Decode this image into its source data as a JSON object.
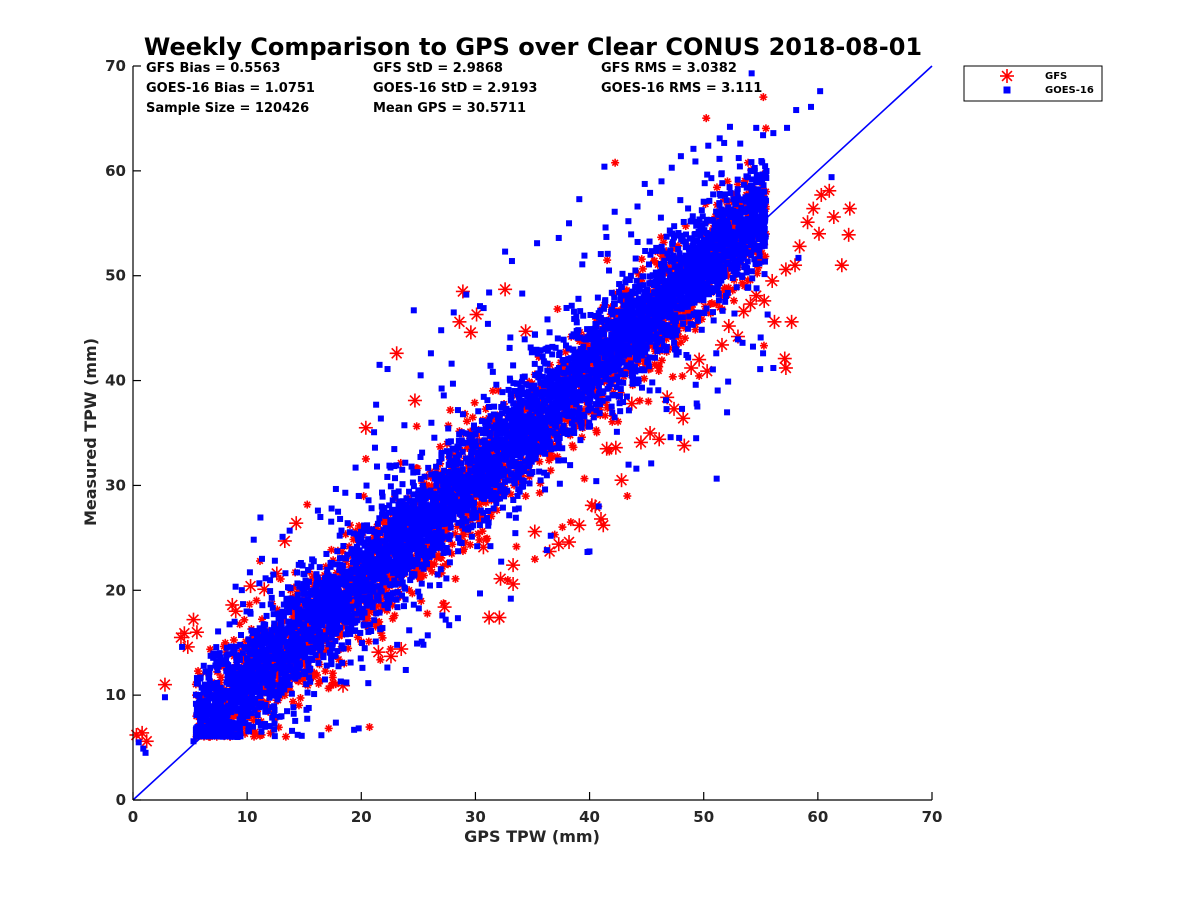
{
  "chart_data": {
    "type": "scatter",
    "title": "Weekly Comparison to GPS over Clear CONUS 2018-08-01",
    "xlabel": "GPS TPW (mm)",
    "ylabel": "Measured TPW (mm)",
    "xlim": [
      0,
      70
    ],
    "ylim": [
      0,
      70
    ],
    "xticks": [
      "0",
      "10",
      "20",
      "30",
      "40",
      "50",
      "60",
      "70"
    ],
    "yticks": [
      "0",
      "10",
      "20",
      "30",
      "40",
      "50",
      "60",
      "70"
    ],
    "grid": false,
    "legend_position": "outside top-right",
    "reference_line": {
      "x": [
        0,
        70
      ],
      "y": [
        0,
        70
      ],
      "color": "#0000ff"
    },
    "stats": {
      "gfs_bias": "GFS Bias = 0.5563",
      "gfs_std": "GFS StD = 2.9868",
      "gfs_rms": "GFS RMS = 3.0382",
      "goes_bias": "GOES-16 Bias = 1.0751",
      "goes_std": "GOES-16 StD = 2.9193",
      "goes_rms": "GOES-16 RMS = 3.111",
      "sample_size": "Sample Size = 120426",
      "mean_gps": "Mean GPS = 30.5711"
    },
    "series": [
      {
        "name": "GFS",
        "marker": "asterisk",
        "color": "#ff0000",
        "bias": 0.5563,
        "std": 2.9868,
        "rms": 3.0382,
        "points": [
          [
            0.3,
            6.2
          ],
          [
            0.8,
            6.4
          ],
          [
            1.2,
            5.6
          ],
          [
            2.8,
            11.0
          ],
          [
            4.2,
            15.5
          ],
          [
            4.5,
            15.9
          ],
          [
            4.8,
            14.6
          ],
          [
            5.3,
            17.2
          ],
          [
            5.6,
            16.0
          ],
          [
            8.7,
            18.6
          ],
          [
            9.0,
            18.0
          ],
          [
            10.3,
            20.4
          ],
          [
            11.5,
            20.1
          ],
          [
            12.6,
            21.6
          ],
          [
            13.3,
            24.7
          ],
          [
            14.3,
            26.4
          ],
          [
            18.4,
            10.9
          ],
          [
            19.2,
            21.2
          ],
          [
            20.4,
            35.5
          ],
          [
            21.5,
            14.1
          ],
          [
            22.6,
            13.7
          ],
          [
            23.5,
            14.4
          ],
          [
            23.1,
            42.6
          ],
          [
            24.7,
            38.1
          ],
          [
            27.3,
            18.4
          ],
          [
            28.6,
            45.6
          ],
          [
            28.9,
            48.5
          ],
          [
            29.6,
            44.6
          ],
          [
            30.1,
            46.3
          ],
          [
            30.7,
            24.1
          ],
          [
            31.2,
            17.4
          ],
          [
            32.1,
            17.4
          ],
          [
            32.2,
            21.1
          ],
          [
            32.6,
            48.7
          ],
          [
            33.3,
            22.4
          ],
          [
            33.3,
            20.6
          ],
          [
            34.4,
            44.7
          ],
          [
            35.2,
            25.6
          ],
          [
            36.5,
            23.7
          ],
          [
            37.3,
            24.4
          ],
          [
            38.2,
            24.6
          ],
          [
            39.1,
            26.2
          ],
          [
            40.2,
            28.1
          ],
          [
            41.0,
            26.8
          ],
          [
            41.2,
            26.2
          ],
          [
            40.5,
            28.0
          ],
          [
            41.5,
            33.5
          ],
          [
            42.8,
            30.5
          ],
          [
            42.3,
            33.6
          ],
          [
            43.7,
            37.8
          ],
          [
            44.5,
            34.1
          ],
          [
            45.3,
            35.0
          ],
          [
            46.1,
            34.4
          ],
          [
            46.8,
            38.4
          ],
          [
            47.4,
            37.3
          ],
          [
            48.2,
            36.4
          ],
          [
            48.3,
            33.8
          ],
          [
            48.9,
            41.2
          ],
          [
            49.6,
            42.0
          ],
          [
            50.3,
            40.9
          ],
          [
            51.6,
            43.4
          ],
          [
            52.2,
            45.2
          ],
          [
            53.0,
            44.2
          ],
          [
            53.5,
            46.6
          ],
          [
            54.1,
            47.3
          ],
          [
            54.6,
            48.1
          ],
          [
            55.3,
            47.6
          ],
          [
            56.0,
            49.5
          ],
          [
            56.2,
            45.6
          ],
          [
            57.1,
            42.1
          ],
          [
            57.2,
            41.2
          ],
          [
            57.7,
            45.6
          ],
          [
            58.4,
            52.8
          ],
          [
            59.1,
            55.1
          ],
          [
            59.6,
            56.4
          ],
          [
            60.3,
            57.7
          ],
          [
            61.0,
            58.1
          ],
          [
            61.4,
            55.6
          ],
          [
            62.1,
            51.0
          ],
          [
            62.8,
            56.4
          ],
          [
            62.7,
            53.9
          ],
          [
            57.2,
            50.6
          ],
          [
            58.0,
            51.0
          ],
          [
            60.1,
            54.0
          ]
        ]
      },
      {
        "name": "GOES-16",
        "marker": "square",
        "color": "#0000ff",
        "bias": 1.0751,
        "std": 2.9193,
        "rms": 3.111,
        "points": [
          [
            0.5,
            5.5
          ],
          [
            0.9,
            4.9
          ],
          [
            1.1,
            4.5
          ],
          [
            2.8,
            9.8
          ],
          [
            4.3,
            14.6
          ],
          [
            5.6,
            11.1
          ],
          [
            6.2,
            12.8
          ],
          [
            7.3,
            13.2
          ],
          [
            8.9,
            17.0
          ],
          [
            11.3,
            23.0
          ],
          [
            12.3,
            21.5
          ],
          [
            13.1,
            25.1
          ],
          [
            16.2,
            27.6
          ],
          [
            17.4,
            27.8
          ],
          [
            18.6,
            29.3
          ],
          [
            19.5,
            31.7
          ],
          [
            21.2,
            33.6
          ],
          [
            21.3,
            37.7
          ],
          [
            21.6,
            41.5
          ],
          [
            22.3,
            41.1
          ],
          [
            24.6,
            46.7
          ],
          [
            25.2,
            40.5
          ],
          [
            26.1,
            42.6
          ],
          [
            27.0,
            44.8
          ],
          [
            28.1,
            46.5
          ],
          [
            29.2,
            48.2
          ],
          [
            30.4,
            47.1
          ],
          [
            31.2,
            48.4
          ],
          [
            32.6,
            52.3
          ],
          [
            33.2,
            51.4
          ],
          [
            34.1,
            48.3
          ],
          [
            35.4,
            53.1
          ],
          [
            37.3,
            53.6
          ],
          [
            38.2,
            55.0
          ],
          [
            39.1,
            57.3
          ],
          [
            41.4,
            54.6
          ],
          [
            41.3,
            60.4
          ],
          [
            42.2,
            56.1
          ],
          [
            43.4,
            55.2
          ],
          [
            44.2,
            56.6
          ],
          [
            45.3,
            57.9
          ],
          [
            46.3,
            59.0
          ],
          [
            47.2,
            60.3
          ],
          [
            48.0,
            61.4
          ],
          [
            49.1,
            62.1
          ],
          [
            50.4,
            62.4
          ],
          [
            51.4,
            63.1
          ],
          [
            52.3,
            64.2
          ],
          [
            53.2,
            62.6
          ],
          [
            54.2,
            69.3
          ],
          [
            54.6,
            64.1
          ],
          [
            55.2,
            63.4
          ],
          [
            56.1,
            63.6
          ],
          [
            57.3,
            64.1
          ],
          [
            58.1,
            65.8
          ],
          [
            59.4,
            66.1
          ],
          [
            60.2,
            67.6
          ],
          [
            61.2,
            59.4
          ],
          [
            56.1,
            41.2
          ],
          [
            55.2,
            42.6
          ],
          [
            53.4,
            43.6
          ],
          [
            51.1,
            42.6
          ],
          [
            49.3,
            39.6
          ],
          [
            48.1,
            37.3
          ],
          [
            47.1,
            34.6
          ],
          [
            45.4,
            32.1
          ],
          [
            44.1,
            31.6
          ],
          [
            40.8,
            28.0
          ],
          [
            36.6,
            25.2
          ],
          [
            33.1,
            19.2
          ],
          [
            30.4,
            19.7
          ],
          [
            27.1,
            17.6
          ],
          [
            25.3,
            15.1
          ],
          [
            23.9,
            12.4
          ],
          [
            20.1,
            12.6
          ],
          [
            18.2,
            11.3
          ],
          [
            15.2,
            8.6
          ],
          [
            12.4,
            7.3
          ],
          [
            10.1,
            6.6
          ],
          [
            7.5,
            6.2
          ],
          [
            5.3,
            5.6
          ],
          [
            52.1,
            56.1
          ],
          [
            55.6,
            46.3
          ],
          [
            58.3,
            51.7
          ]
        ]
      }
    ]
  }
}
